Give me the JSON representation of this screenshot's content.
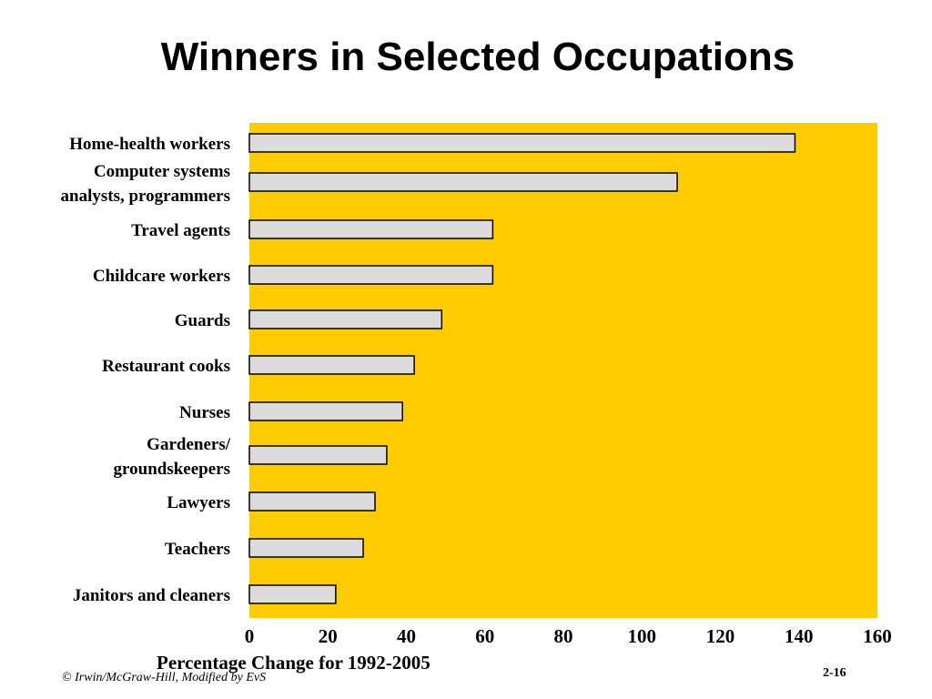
{
  "slide": {
    "title": "Winners in Selected Occupations",
    "footer_left": "© Irwin/McGraw-Hill, Modified by EvS",
    "page_number": "2-16"
  },
  "colors": {
    "plot_background": "#FFCC00",
    "bar_fill": "#DCDCDC",
    "bar_stroke": "#000000"
  },
  "chart_data": {
    "type": "bar",
    "orientation": "horizontal",
    "categories": [
      "Home-health workers",
      "Computer systems analysts, programmers",
      "Travel agents",
      "Childcare workers",
      "Guards",
      "Restaurant cooks",
      "Nurses",
      "Gardeners/ groundskeepers",
      "Lawyers",
      "Teachers",
      "Janitors and cleaners"
    ],
    "category_label_lines": [
      [
        "Home-health workers"
      ],
      [
        "Computer systems",
        "analysts, programmers"
      ],
      [
        "Travel agents"
      ],
      [
        "Childcare workers"
      ],
      [
        "Guards"
      ],
      [
        "Restaurant cooks"
      ],
      [
        "Nurses"
      ],
      [
        "Gardeners/",
        "groundskeepers"
      ],
      [
        "Lawyers"
      ],
      [
        "Teachers"
      ],
      [
        "Janitors and cleaners"
      ]
    ],
    "values": [
      139,
      109,
      62,
      62,
      49,
      42,
      39,
      35,
      32,
      29,
      22
    ],
    "xlabel": "Percentage Change for 1992-2005",
    "xlim": [
      0,
      160
    ],
    "xticks": [
      0,
      20,
      40,
      60,
      80,
      100,
      120,
      140,
      160
    ],
    "grid": false,
    "legend": "none"
  }
}
